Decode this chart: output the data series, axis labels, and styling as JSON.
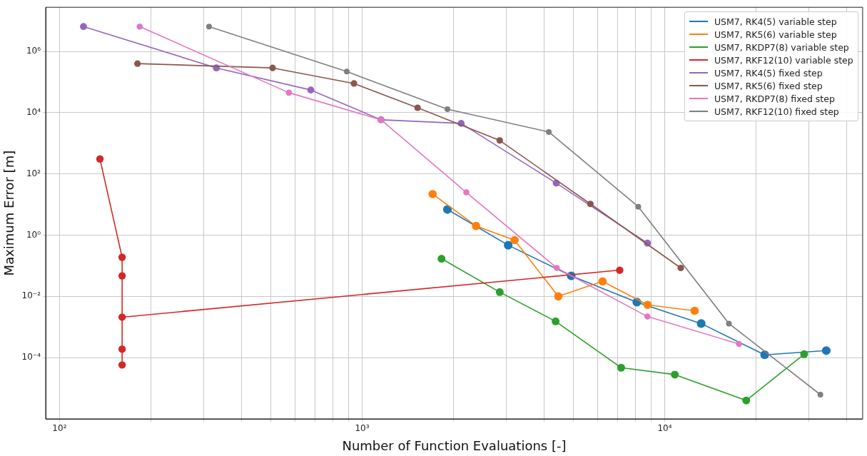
{
  "chart_data": {
    "type": "line",
    "xlabel": "Number of Function Evaluations [-]",
    "ylabel": "Maximum Error [m]",
    "log": "xy",
    "grid": true,
    "legend": "top right",
    "marker": "circle",
    "xlim": [
      90,
      45100
    ],
    "ylim": [
      1e-06,
      27700000.0
    ],
    "xticks": [
      {
        "value": 100,
        "label": "10²"
      },
      {
        "value": 200,
        "label": null
      },
      {
        "value": 300,
        "label": null
      },
      {
        "value": 400,
        "label": null
      },
      {
        "value": 500,
        "label": null
      },
      {
        "value": 600,
        "label": null
      },
      {
        "value": 700,
        "label": null
      },
      {
        "value": 800,
        "label": null
      },
      {
        "value": 900,
        "label": null
      },
      {
        "value": 1000,
        "label": "10³"
      },
      {
        "value": 2000,
        "label": null
      },
      {
        "value": 3000,
        "label": null
      },
      {
        "value": 4000,
        "label": null
      },
      {
        "value": 5000,
        "label": null
      },
      {
        "value": 6000,
        "label": null
      },
      {
        "value": 7000,
        "label": null
      },
      {
        "value": 8000,
        "label": null
      },
      {
        "value": 9000,
        "label": null
      },
      {
        "value": 10000,
        "label": "10⁴"
      },
      {
        "value": 20000,
        "label": null
      },
      {
        "value": 30000,
        "label": null
      },
      {
        "value": 40000,
        "label": null
      }
    ],
    "yticks": [
      {
        "value": 0.0001,
        "label": "10⁻⁴"
      },
      {
        "value": 0.01,
        "label": "10⁻²"
      },
      {
        "value": 1,
        "label": "10⁰"
      },
      {
        "value": 100,
        "label": "10²"
      },
      {
        "value": 10000,
        "label": "10⁴"
      },
      {
        "value": 1000000,
        "label": "10⁶"
      }
    ],
    "series": [
      {
        "name": "USM7, RK4(5) variable step",
        "color": "#1f77b4",
        "x": [
          1914,
          3040,
          4910,
          8090,
          13200,
          21400,
          34200
        ],
        "values": [
          6.9,
          0.47,
          0.047,
          0.0065,
          0.0013,
          0.000124,
          0.00017
        ]
      },
      {
        "name": "USM7, RK5(6) variable step",
        "color": "#ff7f0e",
        "x": [
          1710,
          2380,
          3190,
          4450,
          6230,
          8780,
          12560
        ],
        "values": [
          22,
          2.0,
          0.69,
          0.01,
          0.031,
          0.0053,
          0.0034
        ]
      },
      {
        "name": "USM7, RKDP7(8) variable step",
        "color": "#2ca02c",
        "x": [
          1830,
          2850,
          4360,
          7180,
          10800,
          18600,
          28900
        ],
        "values": [
          0.17,
          0.0138,
          0.00153,
          4.7e-05,
          2.8e-05,
          4e-06,
          0.00013
        ]
      },
      {
        "name": "USM7, RKF12(10) variable step",
        "color": "#d62728",
        "x": [
          136,
          161,
          161,
          161,
          161,
          161,
          7100
        ],
        "values": [
          308,
          0.19,
          0.047,
          0.00019,
          5.8e-05,
          0.0021,
          0.072
        ]
      },
      {
        "name": "USM7, RK4(5) fixed step",
        "color": "#9467bd",
        "x": [
          120,
          330,
          677,
          1155,
          2125,
          4380,
          8770
        ],
        "values": [
          6500000,
          290000,
          55000,
          5850,
          4480,
          50,
          0.55
        ]
      },
      {
        "name": "USM7, RK5(6) fixed step",
        "color": "#8c564b",
        "x": [
          181,
          506,
          940,
          1525,
          2850,
          5680,
          11300
        ],
        "values": [
          400000,
          290000,
          90000,
          14500,
          1240,
          10.5,
          0.085
        ]
      },
      {
        "name": "USM7, RKDP7(8) fixed step",
        "color": "#e377c2",
        "x": [
          184,
          573,
          1155,
          2210,
          4400,
          8770,
          17600
        ],
        "values": [
          6500000,
          45000,
          5850,
          25,
          0.085,
          0.0022,
          0.00028
        ]
      },
      {
        "name": "USM7, RKF12(10) fixed step",
        "color": "#7f7f7f",
        "x": [
          312,
          890,
          1914,
          4140,
          8180,
          16300,
          32700
        ],
        "values": [
          6500000,
          220000,
          13000,
          2350,
          8.5,
          0.0013,
          6.2e-06
        ]
      }
    ]
  }
}
